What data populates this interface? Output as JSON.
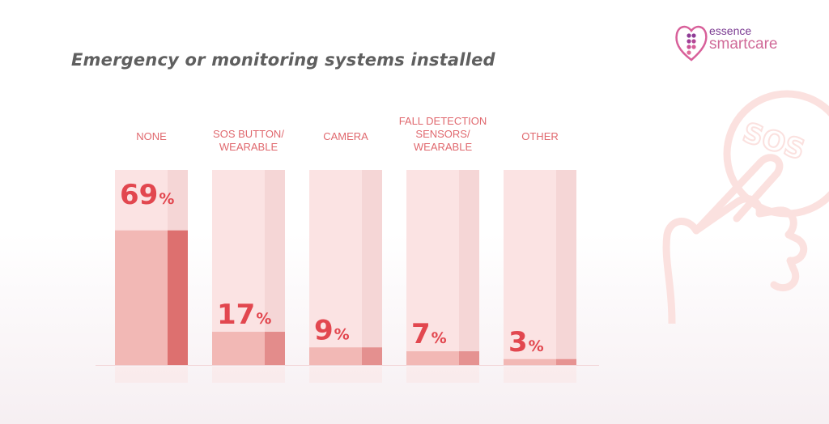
{
  "header": {
    "title": "Emergency or monitoring systems installed"
  },
  "logo": {
    "line1": "essence",
    "line2": "smartcare"
  },
  "decoration": {
    "icon_text": "SOS"
  },
  "colors": {
    "bar_bg": "#fbe3e3",
    "bar_bg_strip": "#f5d6d6",
    "bar_fill": "#f2b8b5",
    "bar_fill_strip": "#d9605e",
    "label": "#e0686e",
    "value": "#e2474f"
  },
  "chart_data": {
    "type": "bar",
    "title": "Emergency or monitoring systems installed",
    "categories": [
      [
        "NONE"
      ],
      [
        "SOS BUTTON/",
        "WEARABLE"
      ],
      [
        "CAMERA"
      ],
      [
        "FALL DETECTION",
        "SENSORS/",
        "WEARABLE"
      ],
      [
        "OTHER"
      ]
    ],
    "values": [
      69,
      17,
      9,
      7,
      3
    ],
    "value_labels": [
      "69%",
      "17%",
      "9%",
      "7%",
      "3%"
    ],
    "unit": "%",
    "ylim": [
      0,
      100
    ],
    "grid": false,
    "legend": "none"
  }
}
